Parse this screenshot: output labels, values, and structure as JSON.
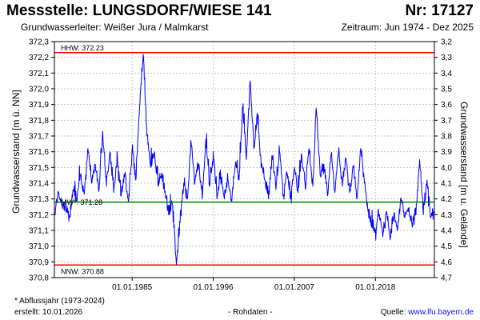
{
  "header": {
    "title": "Messstelle: LUNGSDORF/WIESE 141",
    "station_no": "Nr: 17127",
    "aquifer": "Grundwasserleiter:   Weißer Jura / Malmkarst",
    "period": "Zeitraum: Jun 1974 - Dez 2025"
  },
  "footer": {
    "footnote": "* Abflussjahr (1973-2024)",
    "created": "erstellt:  10.01.2026",
    "rawdata": "- Rohdaten -",
    "source_prefix": "Quelle: ",
    "source_link": "www.lfu.bayern.de"
  },
  "chart_data": {
    "type": "line",
    "ylabel": "Grundwasserstand [m ü. NN]",
    "ylabel_right": "Grundwasserstand [m u. Gelände]",
    "xlim": [
      1974.45,
      2026.0
    ],
    "ylim": [
      370.8,
      372.3
    ],
    "ylim_right": [
      4.7,
      3.2
    ],
    "x_ticks": [
      {
        "value": 1985.0,
        "label": "01.01.1985"
      },
      {
        "value": 1996.0,
        "label": "01.01.1996"
      },
      {
        "value": 2007.0,
        "label": "01.01.2007"
      },
      {
        "value": 2018.0,
        "label": "01.01.2018"
      }
    ],
    "y_ticks": [
      "370,8",
      "370,9",
      "371,0",
      "371,1",
      "371,2",
      "371,3",
      "371,4",
      "371,5",
      "371,6",
      "371,7",
      "371,8",
      "371,9",
      "372,0",
      "372,1",
      "372,2",
      "372,3"
    ],
    "y2_ticks": [
      "4,7",
      "4,6",
      "4,5",
      "4,4",
      "4,3",
      "4,2",
      "4,1",
      "4,0",
      "3,9",
      "3,8",
      "3,7",
      "3,6",
      "3,5",
      "3,4",
      "3,3",
      "3,2"
    ],
    "grid": true,
    "reference_lines": [
      {
        "label": "HHW: 372.23",
        "value": 372.23,
        "color": "#ff0000"
      },
      {
        "label": "MW*: 371.28",
        "value": 371.28,
        "color": "#008000"
      },
      {
        "label": "NNW: 370.88",
        "value": 370.88,
        "color": "#ff0000"
      }
    ],
    "series": [
      {
        "color": "#0000ff",
        "x": [
          1974.5,
          1975.0,
          1975.5,
          1976.0,
          1976.5,
          1977.0,
          1977.5,
          1978.0,
          1978.5,
          1979.0,
          1979.5,
          1980.0,
          1980.5,
          1981.0,
          1981.5,
          1982.0,
          1982.5,
          1983.0,
          1983.5,
          1984.0,
          1984.5,
          1985.0,
          1985.5,
          1986.0,
          1986.5,
          1987.0,
          1987.5,
          1988.0,
          1988.5,
          1989.0,
          1989.5,
          1990.0,
          1990.5,
          1991.0,
          1991.5,
          1992.0,
          1992.5,
          1993.0,
          1993.5,
          1994.0,
          1994.5,
          1995.0,
          1995.5,
          1996.0,
          1996.5,
          1997.0,
          1997.5,
          1998.0,
          1998.5,
          1999.0,
          1999.5,
          2000.0,
          2000.5,
          2001.0,
          2001.5,
          2002.0,
          2002.5,
          2003.0,
          2003.5,
          2004.0,
          2004.5,
          2005.0,
          2005.5,
          2006.0,
          2006.5,
          2007.0,
          2007.5,
          2008.0,
          2008.5,
          2009.0,
          2009.5,
          2010.0,
          2010.5,
          2011.0,
          2011.5,
          2012.0,
          2012.5,
          2013.0,
          2013.5,
          2014.0,
          2014.5,
          2015.0,
          2015.5,
          2016.0,
          2016.5,
          2017.0,
          2017.5,
          2018.0,
          2018.5,
          2019.0,
          2019.5,
          2020.0,
          2020.5,
          2021.0,
          2021.5,
          2022.0,
          2022.5,
          2023.0,
          2023.5,
          2024.0,
          2024.5,
          2025.0,
          2025.5,
          2025.9
        ],
        "values": [
          371.2,
          371.34,
          371.26,
          371.22,
          371.18,
          371.36,
          371.28,
          371.45,
          371.33,
          371.62,
          371.4,
          371.52,
          371.35,
          371.73,
          371.38,
          371.6,
          371.34,
          371.56,
          371.32,
          371.45,
          371.28,
          371.62,
          371.42,
          371.88,
          372.22,
          371.7,
          371.5,
          371.6,
          371.38,
          371.46,
          371.32,
          371.2,
          371.26,
          370.88,
          371.15,
          371.4,
          371.3,
          371.66,
          371.4,
          371.52,
          371.3,
          371.68,
          371.38,
          371.6,
          371.3,
          371.46,
          371.3,
          371.42,
          371.28,
          371.52,
          371.42,
          371.88,
          371.55,
          372.05,
          371.62,
          371.82,
          371.5,
          371.42,
          371.3,
          371.56,
          371.36,
          371.6,
          371.32,
          371.45,
          371.3,
          371.5,
          371.34,
          371.58,
          371.36,
          371.62,
          371.38,
          371.86,
          371.45,
          371.52,
          371.32,
          371.58,
          371.34,
          371.6,
          371.38,
          371.56,
          371.34,
          371.5,
          371.3,
          371.62,
          371.4,
          371.22,
          371.12,
          371.1,
          371.2,
          371.06,
          371.22,
          371.04,
          371.2,
          371.1,
          371.3,
          371.18,
          371.22,
          371.12,
          371.2,
          371.55,
          371.2,
          371.42,
          371.18,
          371.22
        ]
      }
    ]
  }
}
